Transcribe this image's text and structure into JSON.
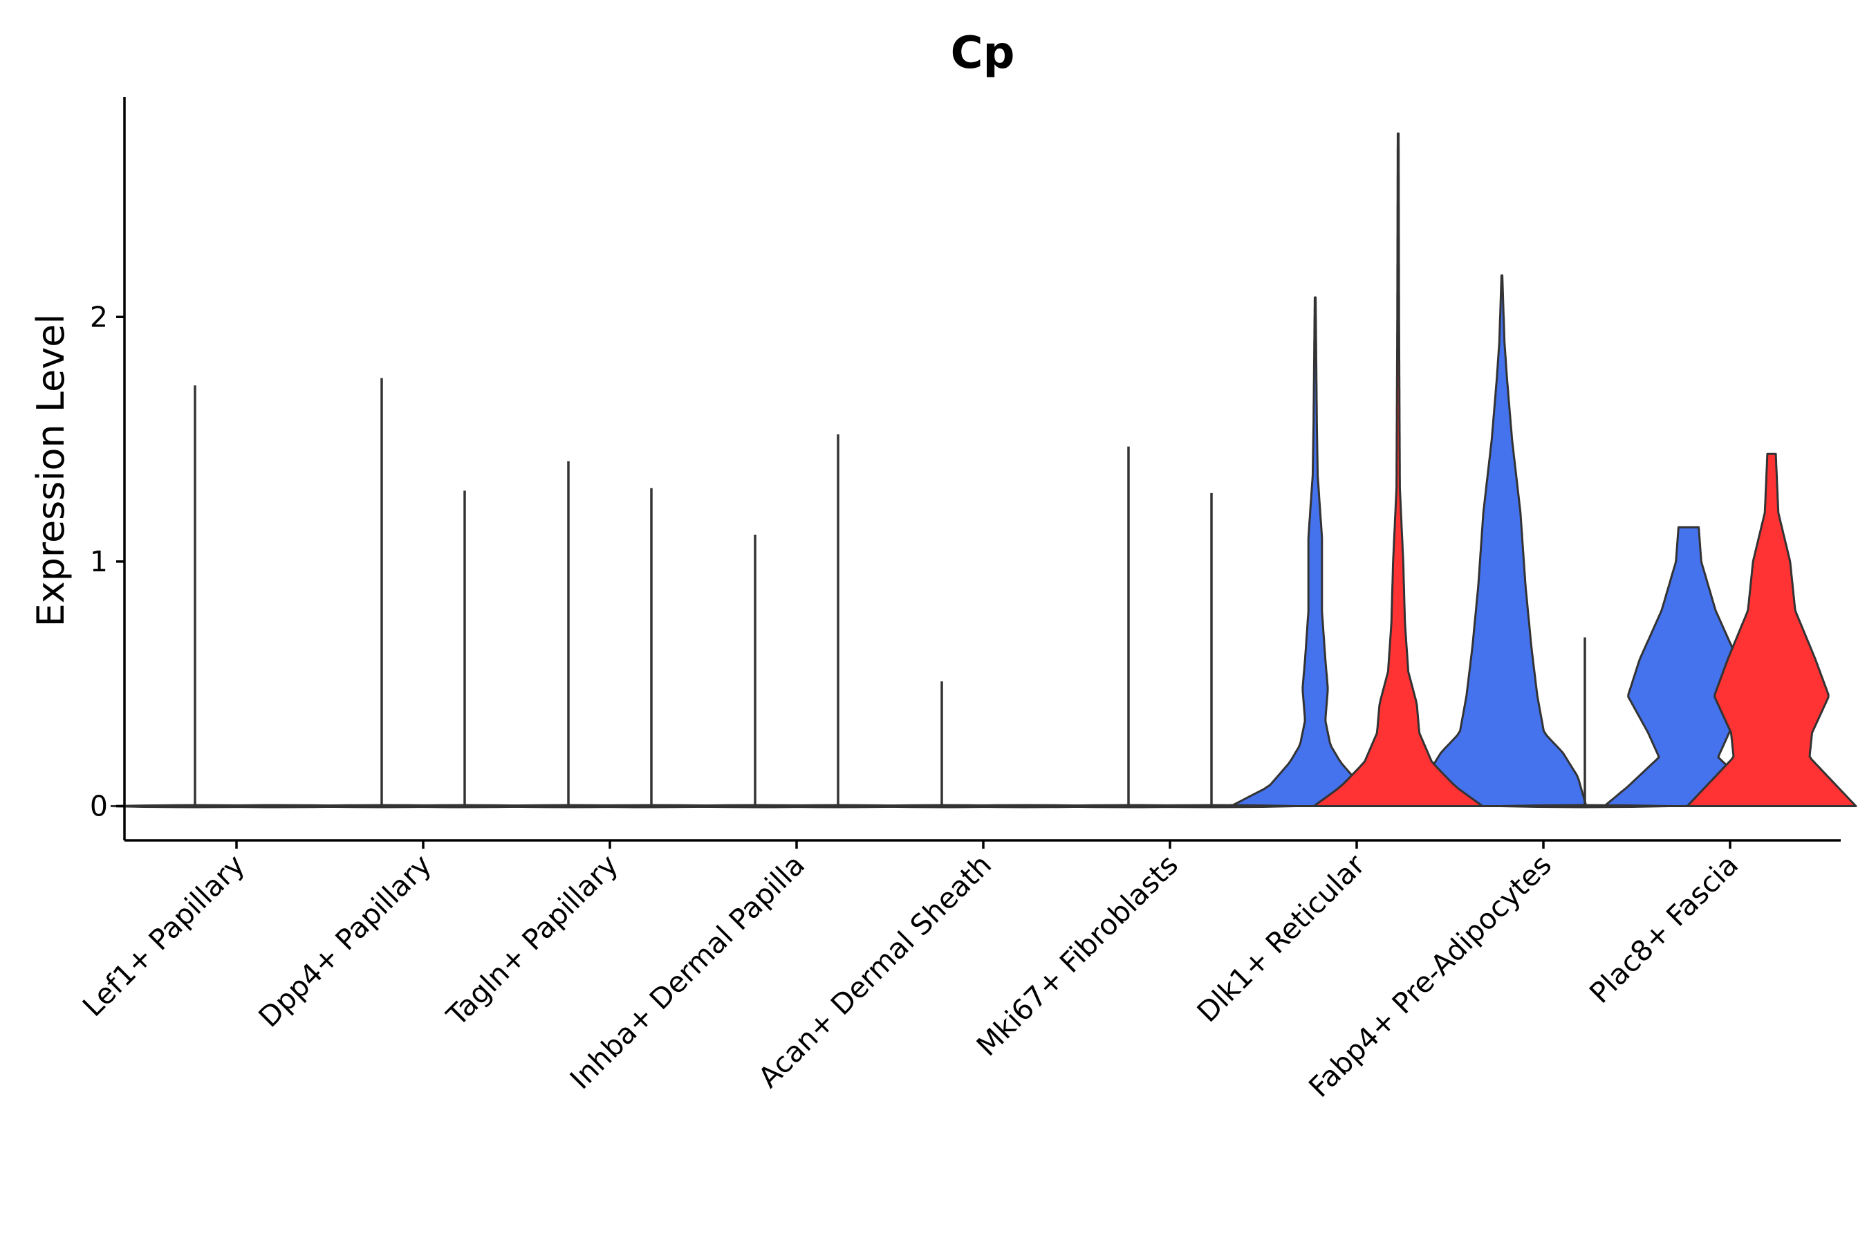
{
  "colors": {
    "group_a": "#4573EE",
    "group_b": "#FF3333",
    "outline": "#333333",
    "axis": "#000000",
    "background": "#FFFFFF"
  },
  "chart_data": {
    "type": "violin",
    "title": "Cp",
    "xlabel": "",
    "ylabel": "Expression Level",
    "ylim": [
      -0.14,
      2.9
    ],
    "yticks": [
      0,
      1,
      2
    ],
    "grid": false,
    "legend": "none",
    "categories": [
      "Lef1+ Papillary",
      "Dpp4+ Papillary",
      "Tagln+ Papillary",
      "Inhba+ Dermal Papilla",
      "Acan+ Dermal Sheath",
      "Mki67+ Fibroblasts",
      "Dlk1+ Reticular",
      "Fabp4+ Pre-Adipocytes",
      "Plac8+ Fascia"
    ],
    "series": [
      {
        "name": "group_a",
        "color_key": "group_a",
        "filled": [
          false,
          false,
          false,
          false,
          false,
          false,
          true,
          true,
          true
        ],
        "max": [
          1.72,
          1.75,
          1.41,
          1.11,
          0.51,
          1.47,
          2.08,
          2.17,
          1.14
        ],
        "profiles": [
          null,
          null,
          null,
          null,
          null,
          null,
          [
            [
              0.0,
              1.0
            ],
            [
              0.08,
              0.55
            ],
            [
              0.18,
              0.3
            ],
            [
              0.25,
              0.18
            ],
            [
              0.35,
              0.12
            ],
            [
              0.48,
              0.15
            ],
            [
              0.6,
              0.12
            ],
            [
              0.8,
              0.08
            ],
            [
              1.1,
              0.08
            ],
            [
              1.35,
              0.03
            ],
            [
              1.55,
              0.02
            ],
            [
              2.08,
              0.005
            ]
          ],
          [
            [
              0.0,
              1.0
            ],
            [
              0.12,
              0.9
            ],
            [
              0.22,
              0.72
            ],
            [
              0.3,
              0.5
            ],
            [
              0.45,
              0.42
            ],
            [
              0.65,
              0.35
            ],
            [
              0.9,
              0.28
            ],
            [
              1.2,
              0.22
            ],
            [
              1.5,
              0.12
            ],
            [
              1.75,
              0.06
            ],
            [
              1.9,
              0.03
            ],
            [
              2.17,
              0.005
            ]
          ],
          [
            [
              0.0,
              1.0
            ],
            [
              0.08,
              0.72
            ],
            [
              0.2,
              0.35
            ],
            [
              0.3,
              0.48
            ],
            [
              0.45,
              0.72
            ],
            [
              0.6,
              0.58
            ],
            [
              0.8,
              0.32
            ],
            [
              1.0,
              0.15
            ],
            [
              1.14,
              0.12
            ]
          ]
        ]
      },
      {
        "name": "group_b",
        "color_key": "group_b",
        "filled": [
          false,
          false,
          false,
          false,
          false,
          false,
          true,
          false,
          true
        ],
        "max": [
          0.0,
          1.29,
          1.3,
          1.52,
          0.0,
          1.28,
          2.75,
          0.69,
          1.44
        ],
        "profiles": [
          null,
          null,
          null,
          null,
          null,
          null,
          [
            [
              0.0,
              1.0
            ],
            [
              0.08,
              0.68
            ],
            [
              0.18,
              0.4
            ],
            [
              0.3,
              0.25
            ],
            [
              0.42,
              0.22
            ],
            [
              0.55,
              0.12
            ],
            [
              0.75,
              0.08
            ],
            [
              1.0,
              0.06
            ],
            [
              1.3,
              0.02
            ],
            [
              2.0,
              0.01
            ],
            [
              2.75,
              0.005
            ]
          ],
          null,
          [
            [
              0.0,
              1.0
            ],
            [
              0.08,
              0.78
            ],
            [
              0.2,
              0.45
            ],
            [
              0.3,
              0.48
            ],
            [
              0.45,
              0.68
            ],
            [
              0.6,
              0.52
            ],
            [
              0.8,
              0.28
            ],
            [
              1.0,
              0.22
            ],
            [
              1.2,
              0.08
            ],
            [
              1.44,
              0.05
            ]
          ]
        ]
      }
    ]
  }
}
